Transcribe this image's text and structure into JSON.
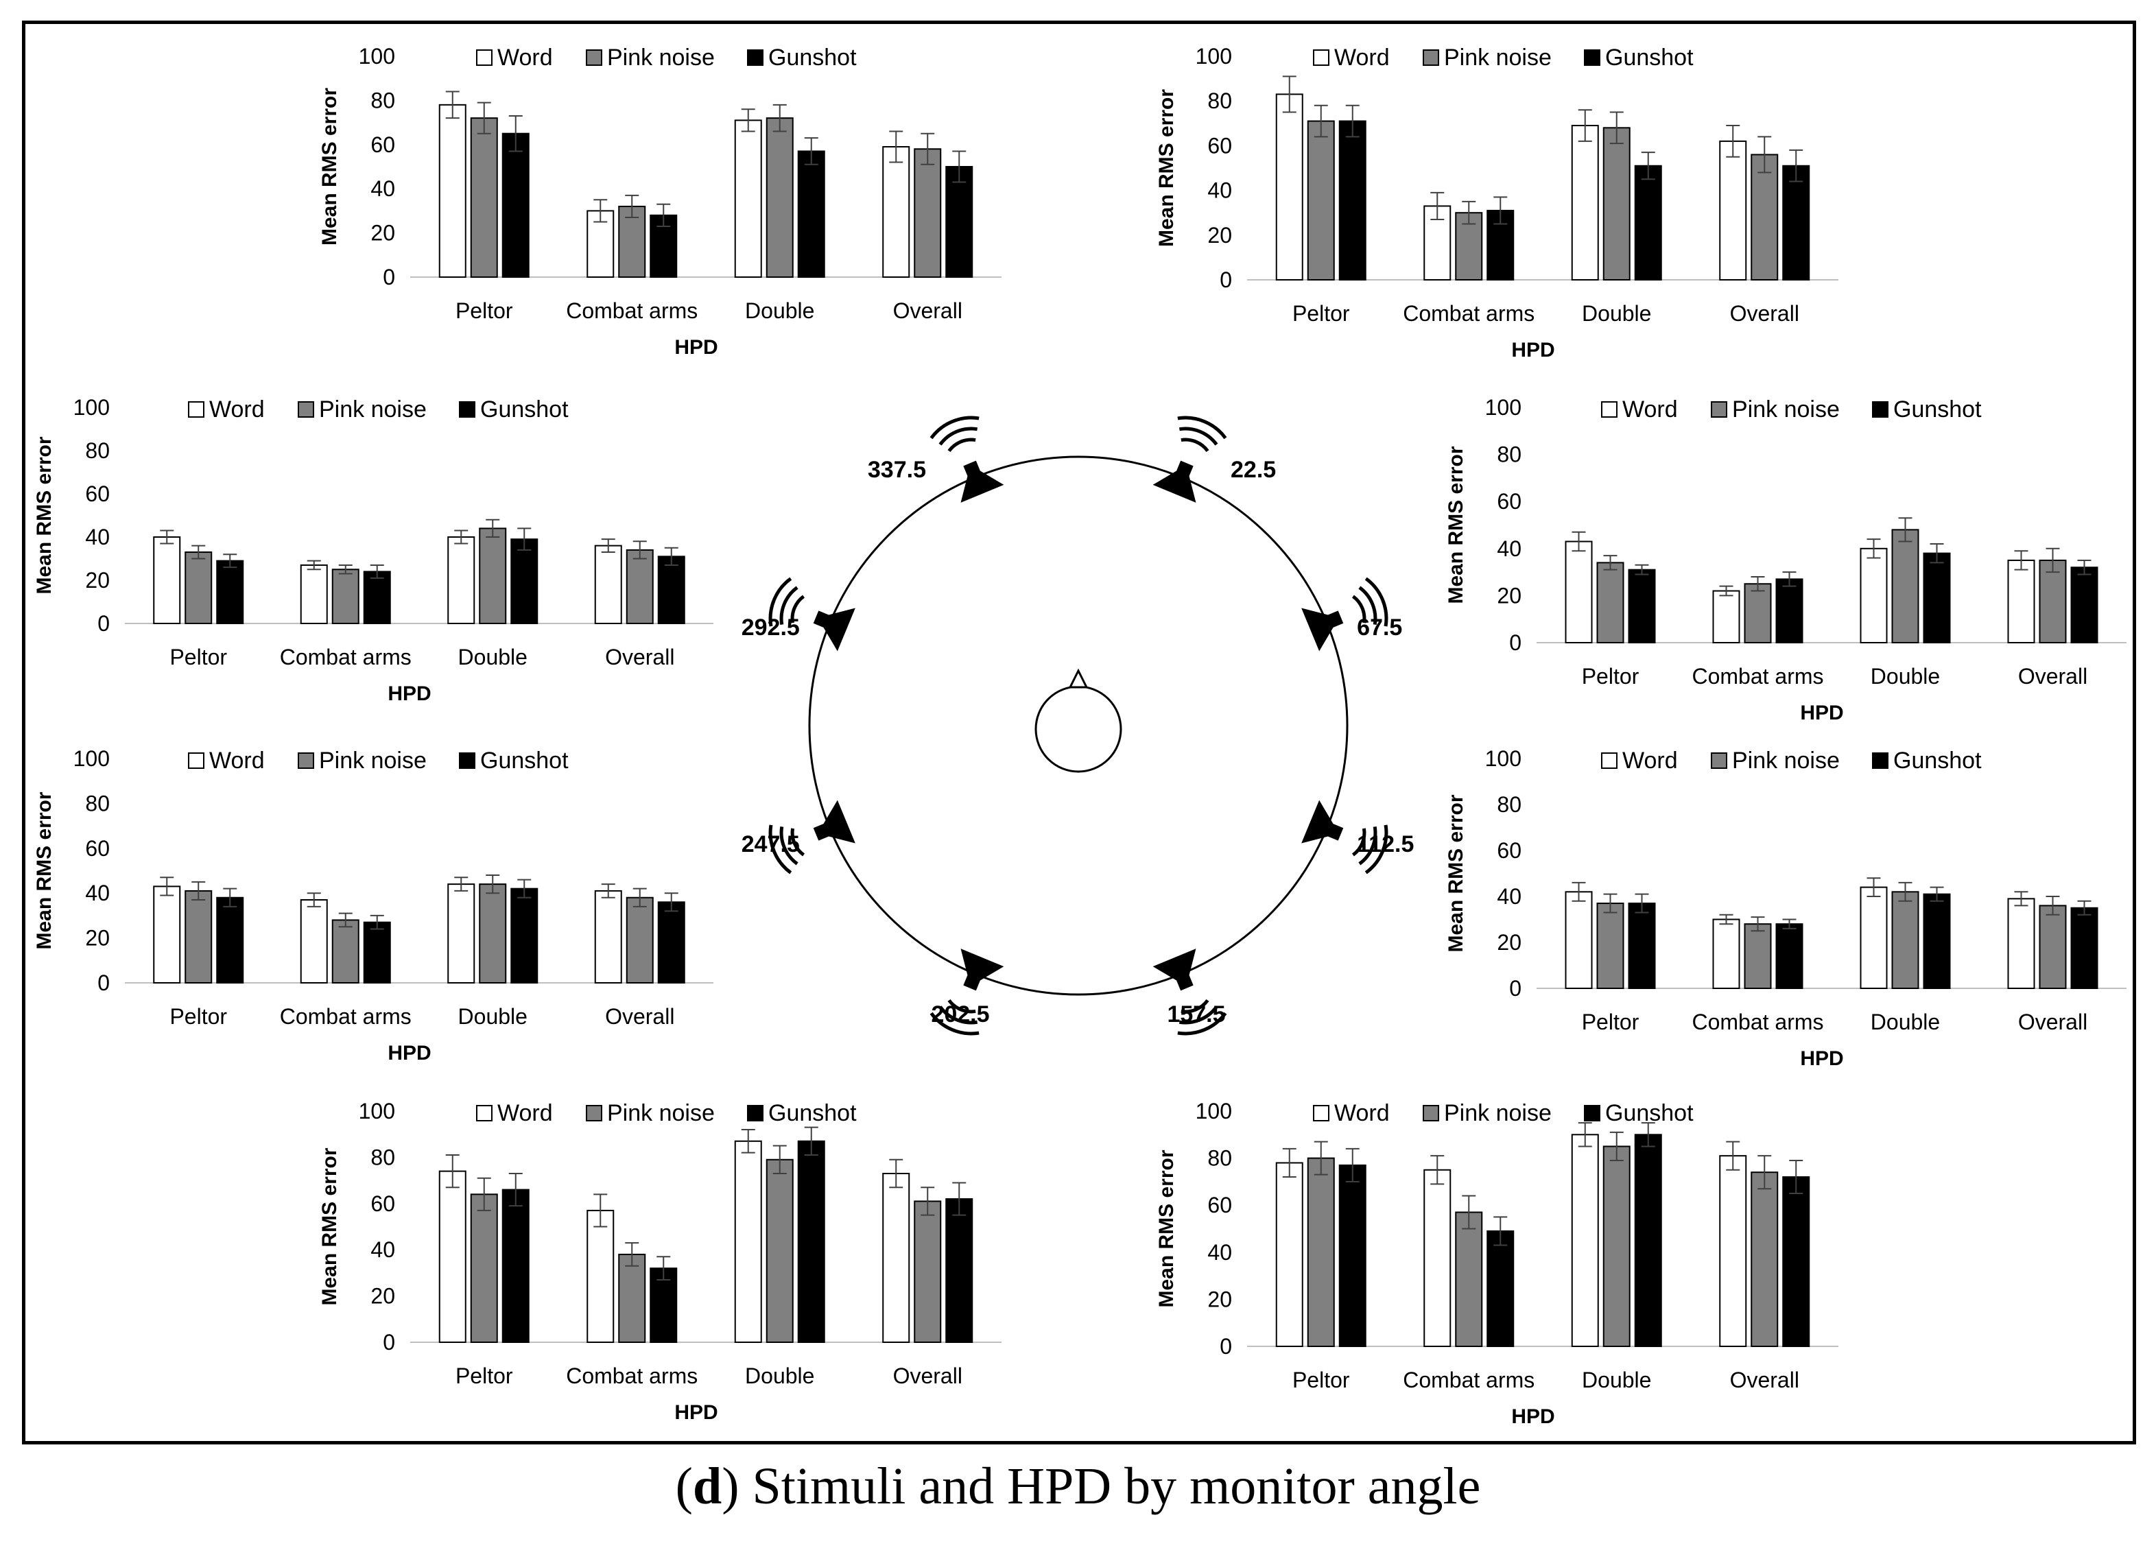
{
  "caption": {
    "panel": "d",
    "text": ") Stimuli and HPD by monitor angle"
  },
  "series_colors": {
    "Word": "#ffffff",
    "Pink noise": "#808080",
    "Gunshot": "#000000"
  },
  "angles": [
    "337.5",
    "22.5",
    "67.5",
    "112.5",
    "157.5",
    "202.5",
    "247.5",
    "292.5"
  ],
  "chart_data": [
    {
      "type": "bar",
      "angle": "337.5",
      "xlabel": "HPD",
      "ylabel": "Mean RMS error",
      "ylim": [
        0,
        100
      ],
      "yticks": [
        0,
        20,
        40,
        60,
        80,
        100
      ],
      "categories": [
        "Peltor",
        "Combat arms",
        "Double",
        "Overall"
      ],
      "series": [
        {
          "name": "Word",
          "values": [
            78,
            30,
            71,
            59
          ],
          "errors": [
            6,
            5,
            5,
            7
          ]
        },
        {
          "name": "Pink noise",
          "values": [
            72,
            32,
            72,
            58
          ],
          "errors": [
            7,
            5,
            6,
            7
          ]
        },
        {
          "name": "Gunshot",
          "values": [
            65,
            28,
            57,
            50
          ],
          "errors": [
            8,
            5,
            6,
            7
          ]
        }
      ]
    },
    {
      "type": "bar",
      "angle": "22.5",
      "xlabel": "HPD",
      "ylabel": "Mean RMS error",
      "ylim": [
        0,
        100
      ],
      "yticks": [
        0,
        20,
        40,
        60,
        80,
        100
      ],
      "categories": [
        "Peltor",
        "Combat arms",
        "Double",
        "Overall"
      ],
      "series": [
        {
          "name": "Word",
          "values": [
            83,
            33,
            69,
            62
          ],
          "errors": [
            8,
            6,
            7,
            7
          ]
        },
        {
          "name": "Pink noise",
          "values": [
            71,
            30,
            68,
            56
          ],
          "errors": [
            7,
            5,
            7,
            8
          ]
        },
        {
          "name": "Gunshot",
          "values": [
            71,
            31,
            51,
            51
          ],
          "errors": [
            7,
            6,
            6,
            7
          ]
        }
      ]
    },
    {
      "type": "bar",
      "angle": "292.5",
      "xlabel": "HPD",
      "ylabel": "Mean RMS error",
      "ylim": [
        0,
        100
      ],
      "yticks": [
        0,
        20,
        40,
        60,
        80,
        100
      ],
      "categories": [
        "Peltor",
        "Combat arms",
        "Double",
        "Overall"
      ],
      "series": [
        {
          "name": "Word",
          "values": [
            40,
            27,
            40,
            36
          ],
          "errors": [
            3,
            2,
            3,
            3
          ]
        },
        {
          "name": "Pink noise",
          "values": [
            33,
            25,
            44,
            34
          ],
          "errors": [
            3,
            2,
            4,
            4
          ]
        },
        {
          "name": "Gunshot",
          "values": [
            29,
            24,
            39,
            31
          ],
          "errors": [
            3,
            3,
            5,
            4
          ]
        }
      ]
    },
    {
      "type": "bar",
      "angle": "67.5",
      "xlabel": "HPD",
      "ylabel": "Mean RMS error",
      "ylim": [
        0,
        100
      ],
      "yticks": [
        0,
        20,
        40,
        60,
        80,
        100
      ],
      "categories": [
        "Peltor",
        "Combat arms",
        "Double",
        "Overall"
      ],
      "series": [
        {
          "name": "Word",
          "values": [
            43,
            22,
            40,
            35
          ],
          "errors": [
            4,
            2,
            4,
            4
          ]
        },
        {
          "name": "Pink noise",
          "values": [
            34,
            25,
            48,
            35
          ],
          "errors": [
            3,
            3,
            5,
            5
          ]
        },
        {
          "name": "Gunshot",
          "values": [
            31,
            27,
            38,
            32
          ],
          "errors": [
            2,
            3,
            4,
            3
          ]
        }
      ]
    },
    {
      "type": "bar",
      "angle": "247.5",
      "xlabel": "HPD",
      "ylabel": "Mean RMS error",
      "ylim": [
        0,
        100
      ],
      "yticks": [
        0,
        20,
        40,
        60,
        80,
        100
      ],
      "categories": [
        "Peltor",
        "Combat arms",
        "Double",
        "Overall"
      ],
      "series": [
        {
          "name": "Word",
          "values": [
            43,
            37,
            44,
            41
          ],
          "errors": [
            4,
            3,
            3,
            3
          ]
        },
        {
          "name": "Pink noise",
          "values": [
            41,
            28,
            44,
            38
          ],
          "errors": [
            4,
            3,
            4,
            4
          ]
        },
        {
          "name": "Gunshot",
          "values": [
            38,
            27,
            42,
            36
          ],
          "errors": [
            4,
            3,
            4,
            4
          ]
        }
      ]
    },
    {
      "type": "bar",
      "angle": "112.5",
      "xlabel": "HPD",
      "ylabel": "Mean RMS error",
      "ylim": [
        0,
        100
      ],
      "yticks": [
        0,
        20,
        40,
        60,
        80,
        100
      ],
      "categories": [
        "Peltor",
        "Combat arms",
        "Double",
        "Overall"
      ],
      "series": [
        {
          "name": "Word",
          "values": [
            42,
            30,
            44,
            39
          ],
          "errors": [
            4,
            2,
            4,
            3
          ]
        },
        {
          "name": "Pink noise",
          "values": [
            37,
            28,
            42,
            36
          ],
          "errors": [
            4,
            3,
            4,
            4
          ]
        },
        {
          "name": "Gunshot",
          "values": [
            37,
            28,
            41,
            35
          ],
          "errors": [
            4,
            2,
            3,
            3
          ]
        }
      ]
    },
    {
      "type": "bar",
      "angle": "202.5",
      "xlabel": "HPD",
      "ylabel": "Mean RMS error",
      "ylim": [
        0,
        100
      ],
      "yticks": [
        0,
        20,
        40,
        60,
        80,
        100
      ],
      "categories": [
        "Peltor",
        "Combat arms",
        "Double",
        "Overall"
      ],
      "series": [
        {
          "name": "Word",
          "values": [
            74,
            57,
            87,
            73
          ],
          "errors": [
            7,
            7,
            5,
            6
          ]
        },
        {
          "name": "Pink noise",
          "values": [
            64,
            38,
            79,
            61
          ],
          "errors": [
            7,
            5,
            6,
            6
          ]
        },
        {
          "name": "Gunshot",
          "values": [
            66,
            32,
            87,
            62
          ],
          "errors": [
            7,
            5,
            6,
            7
          ]
        }
      ]
    },
    {
      "type": "bar",
      "angle": "157.5",
      "xlabel": "HPD",
      "ylabel": "Mean RMS error",
      "ylim": [
        0,
        100
      ],
      "yticks": [
        0,
        20,
        40,
        60,
        80,
        100
      ],
      "categories": [
        "Peltor",
        "Combat arms",
        "Double",
        "Overall"
      ],
      "series": [
        {
          "name": "Word",
          "values": [
            78,
            75,
            90,
            81
          ],
          "errors": [
            6,
            6,
            5,
            6
          ]
        },
        {
          "name": "Pink noise",
          "values": [
            80,
            57,
            85,
            74
          ],
          "errors": [
            7,
            7,
            6,
            7
          ]
        },
        {
          "name": "Gunshot",
          "values": [
            77,
            49,
            90,
            72
          ],
          "errors": [
            7,
            6,
            5,
            7
          ]
        }
      ]
    }
  ]
}
